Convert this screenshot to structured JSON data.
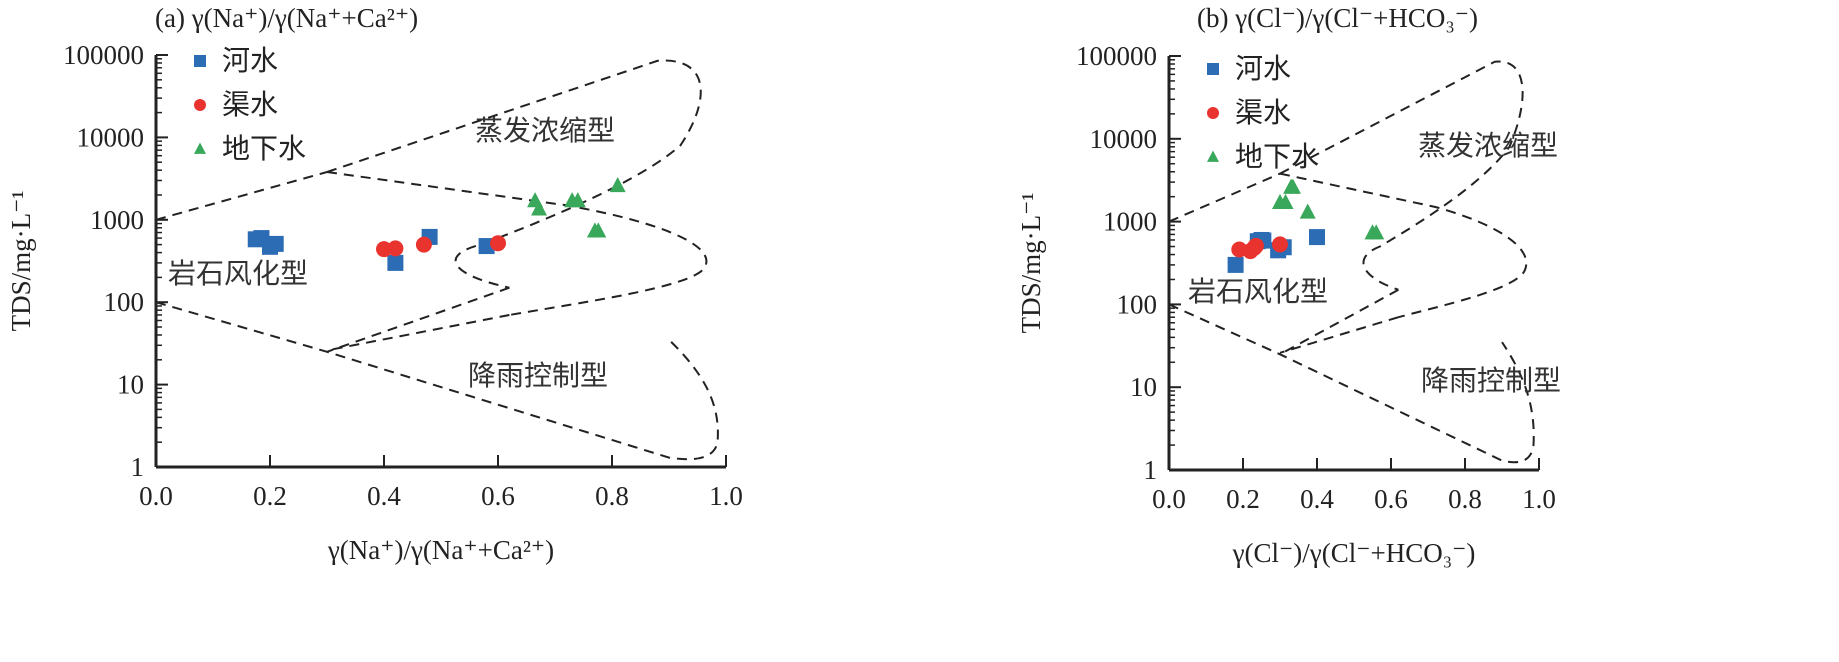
{
  "chart_data": [
    {
      "type": "scatter",
      "panel": "a",
      "title": "(a) γ(Na⁺)/γ(Na⁺+Ca²⁺)",
      "xlabel": "γ(Na⁺)/γ(Na⁺+Ca²⁺)",
      "ylabel": "TDS/mg·L⁻¹",
      "xlim": [
        0,
        1.0
      ],
      "ylim": [
        1,
        100000
      ],
      "yscale": "log",
      "x_ticks": [
        "0.0",
        "0.2",
        "0.4",
        "0.6",
        "0.8",
        "1.0"
      ],
      "y_ticks": [
        "1",
        "10",
        "100",
        "1000",
        "10000",
        "100000"
      ],
      "grid": false,
      "legend_position": "top-left",
      "regions": [
        "蒸发浓缩型",
        "岩石风化型",
        "降雨控制型"
      ],
      "series": [
        {
          "name": "河水",
          "marker": "square",
          "color": "#2b6cb5",
          "points": [
            [
              0.175,
              580
            ],
            [
              0.185,
              600
            ],
            [
              0.2,
              470
            ],
            [
              0.21,
              510
            ],
            [
              0.42,
              300
            ],
            [
              0.48,
              620
            ],
            [
              0.58,
              480
            ]
          ]
        },
        {
          "name": "渠水",
          "marker": "circle",
          "color": "#e8332f",
          "points": [
            [
              0.4,
              440
            ],
            [
              0.42,
              450
            ],
            [
              0.47,
              500
            ],
            [
              0.6,
              520
            ]
          ]
        },
        {
          "name": "地下水",
          "marker": "triangle",
          "color": "#3aa85a",
          "points": [
            [
              0.665,
              1700
            ],
            [
              0.672,
              1350
            ],
            [
              0.73,
              1700
            ],
            [
              0.74,
              1700
            ],
            [
              0.77,
              730
            ],
            [
              0.776,
              730
            ],
            [
              0.81,
              2600
            ]
          ]
        }
      ]
    },
    {
      "type": "scatter",
      "panel": "b",
      "title": "(b) γ(Cl⁻)/γ(Cl⁻+HCO₃⁻)",
      "xlabel": "γ(Cl⁻)/γ(Cl⁻+HCO₃⁻)",
      "ylabel": "TDS/mg·L⁻¹",
      "xlim": [
        0,
        1.0
      ],
      "ylim": [
        1,
        100000
      ],
      "yscale": "log",
      "x_ticks": [
        "0.0",
        "0.2",
        "0.4",
        "0.6",
        "0.8",
        "1.0"
      ],
      "y_ticks": [
        "1",
        "10",
        "100",
        "1000",
        "10000",
        "100000"
      ],
      "grid": false,
      "legend_position": "top-left",
      "regions": [
        "蒸发浓缩型",
        "岩石风化型",
        "降雨控制型"
      ],
      "series": [
        {
          "name": "河水",
          "marker": "square",
          "color": "#2b6cb5",
          "points": [
            [
              0.18,
              300
            ],
            [
              0.24,
              580
            ],
            [
              0.25,
              600
            ],
            [
              0.255,
              590
            ],
            [
              0.295,
              450
            ],
            [
              0.31,
              490
            ],
            [
              0.4,
              650
            ]
          ]
        },
        {
          "name": "渠水",
          "marker": "circle",
          "color": "#e8332f",
          "points": [
            [
              0.19,
              460
            ],
            [
              0.22,
              440
            ],
            [
              0.23,
              480
            ],
            [
              0.235,
              510
            ],
            [
              0.3,
              530
            ]
          ]
        },
        {
          "name": "地下水",
          "marker": "triangle",
          "color": "#3aa85a",
          "points": [
            [
              0.3,
              1700
            ],
            [
              0.315,
              1700
            ],
            [
              0.33,
              2600
            ],
            [
              0.335,
              2600
            ],
            [
              0.375,
              1300
            ],
            [
              0.55,
              730
            ],
            [
              0.56,
              730
            ]
          ]
        }
      ]
    }
  ]
}
